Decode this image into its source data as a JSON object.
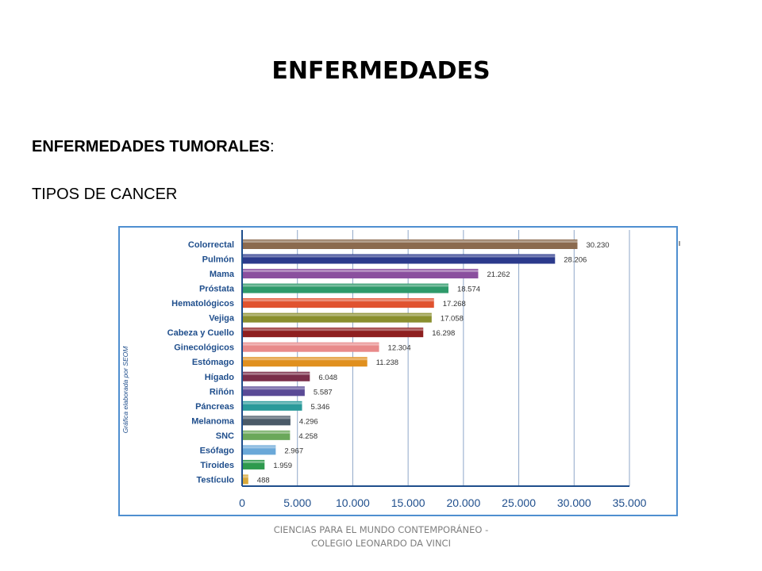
{
  "slide": {
    "title": "ENFERMEDADES",
    "subheading": "ENFERMEDADES TUMORALES",
    "subheading_suffix": ":",
    "section_label": "TIPOS DE CANCER",
    "footer": "CIENCIAS PARA EL MUNDO CONTEMPORÁNEO - COLEGIO LEONARDO DA VINCI"
  },
  "chart_data": {
    "type": "bar",
    "orientation": "horizontal",
    "side_note": "Gráfica elaborada por SEOM",
    "categories": [
      "Colorrectal",
      "Pulmón",
      "Mama",
      "Próstata",
      "Hematológicos",
      "Vejiga",
      "Cabeza y Cuello",
      "Ginecológicos",
      "Estómago",
      "Hígado",
      "Riñón",
      "Páncreas",
      "Melanoma",
      "SNC",
      "Esófago",
      "Tiroides",
      "Testículo"
    ],
    "values": [
      30230,
      28206,
      21262,
      18574,
      17268,
      17058,
      16298,
      12304,
      11238,
      6048,
      5587,
      5346,
      4296,
      4258,
      2967,
      1959,
      488
    ],
    "value_labels": [
      "30.230",
      "28.206",
      "21.262",
      "18.574",
      "17.268",
      "17.058",
      "16.298",
      "12.304",
      "11.238",
      "6.048",
      "5.587",
      "5.346",
      "4.296",
      "4.258",
      "2.967",
      "1.959",
      "488"
    ],
    "bar_colors": [
      "#8b6a4e",
      "#2b3a8c",
      "#8a4f9e",
      "#2e9a6a",
      "#e0522f",
      "#8a8f2e",
      "#8e1f1f",
      "#e88a8a",
      "#e0901f",
      "#7a2e4a",
      "#5a4a96",
      "#2a9a9a",
      "#4a5a68",
      "#6aa85a",
      "#6aa8d8",
      "#2e9a4e",
      "#d8a83a"
    ],
    "xlim": [
      0,
      35000
    ],
    "xticks": [
      "0",
      "5.000",
      "10.000",
      "15.000",
      "20.000",
      "25.000",
      "30.000",
      "35.000"
    ],
    "grid": true,
    "border_color": "#4f8fd0"
  }
}
